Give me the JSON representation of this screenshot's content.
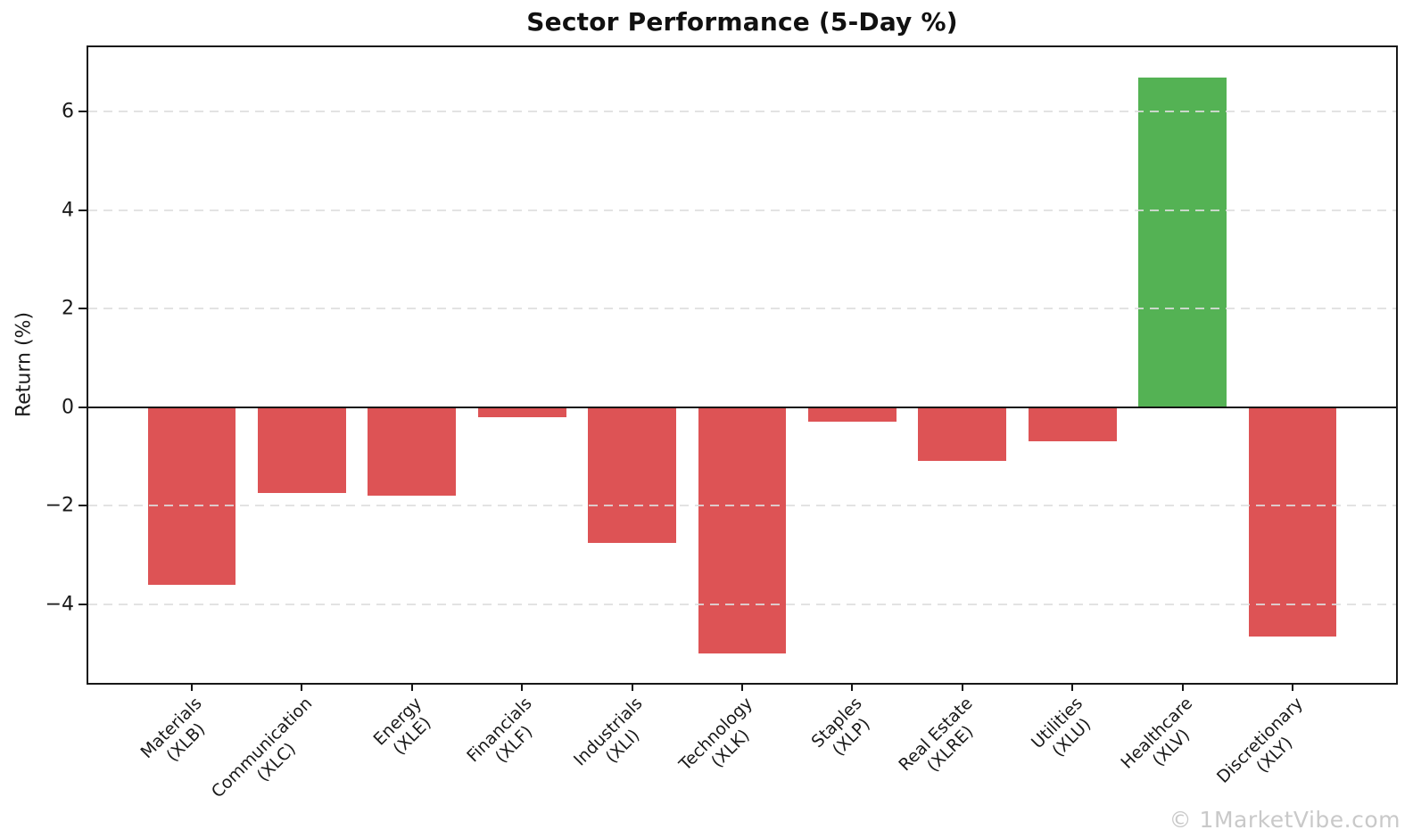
{
  "watermark": "© 1MarketVibe.com",
  "chart_data": {
    "type": "bar",
    "title": "Sector Performance (5-Day %)",
    "ylabel": "Return (%)",
    "categories": [
      "Materials\n(XLB)",
      "Communication\n(XLC)",
      "Energy\n(XLE)",
      "Financials\n(XLF)",
      "Industrials\n(XLI)",
      "Technology\n(XLK)",
      "Staples\n(XLP)",
      "Real Estate\n(XLRE)",
      "Utilities\n(XLU)",
      "Healthcare\n(XLV)",
      "Discretionary\n(XLY)"
    ],
    "values": [
      -3.6,
      -1.75,
      -1.8,
      -0.2,
      -2.75,
      -5.0,
      -0.3,
      -1.1,
      -0.7,
      6.7,
      -4.65
    ],
    "yticks": [
      -4,
      -2,
      0,
      2,
      4,
      6
    ],
    "ytick_labels": [
      "−4",
      "−2",
      "0",
      "2",
      "4",
      "6"
    ],
    "ylim": [
      -5.6,
      7.31
    ],
    "xlim": [
      -0.94,
      10.94
    ],
    "bar_width": 0.8,
    "positive_color": "#54b254",
    "negative_color": "#dd5355",
    "grid": "horizontal-dashed",
    "zero_line": true,
    "legend": "none"
  }
}
